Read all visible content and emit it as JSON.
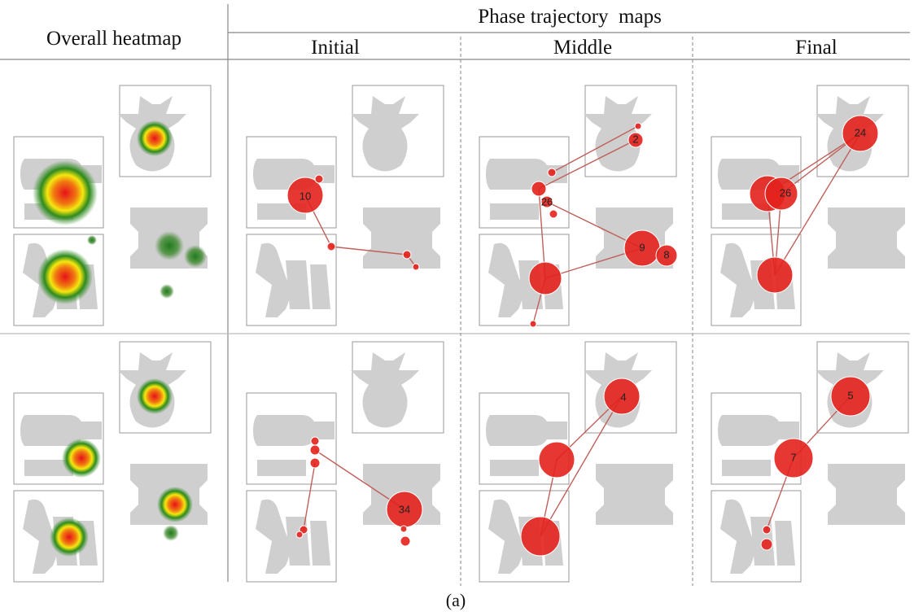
{
  "header": {
    "overall": "Overall heatmap",
    "phase": "Phase trajectory  maps",
    "phases": [
      "Initial",
      "Middle",
      "Final"
    ]
  },
  "rows": [
    {
      "maps": [
        {
          "labels": [
            "10"
          ]
        },
        {
          "labels": [
            "9",
            "8",
            "26",
            "2"
          ]
        },
        {
          "labels": [
            "24",
            "26"
          ]
        }
      ]
    },
    {
      "maps": [
        {
          "labels": [
            "34"
          ]
        },
        {
          "labels": [
            "4"
          ]
        },
        {
          "labels": [
            "5",
            "7"
          ]
        }
      ]
    }
  ],
  "caption": "(a)"
}
